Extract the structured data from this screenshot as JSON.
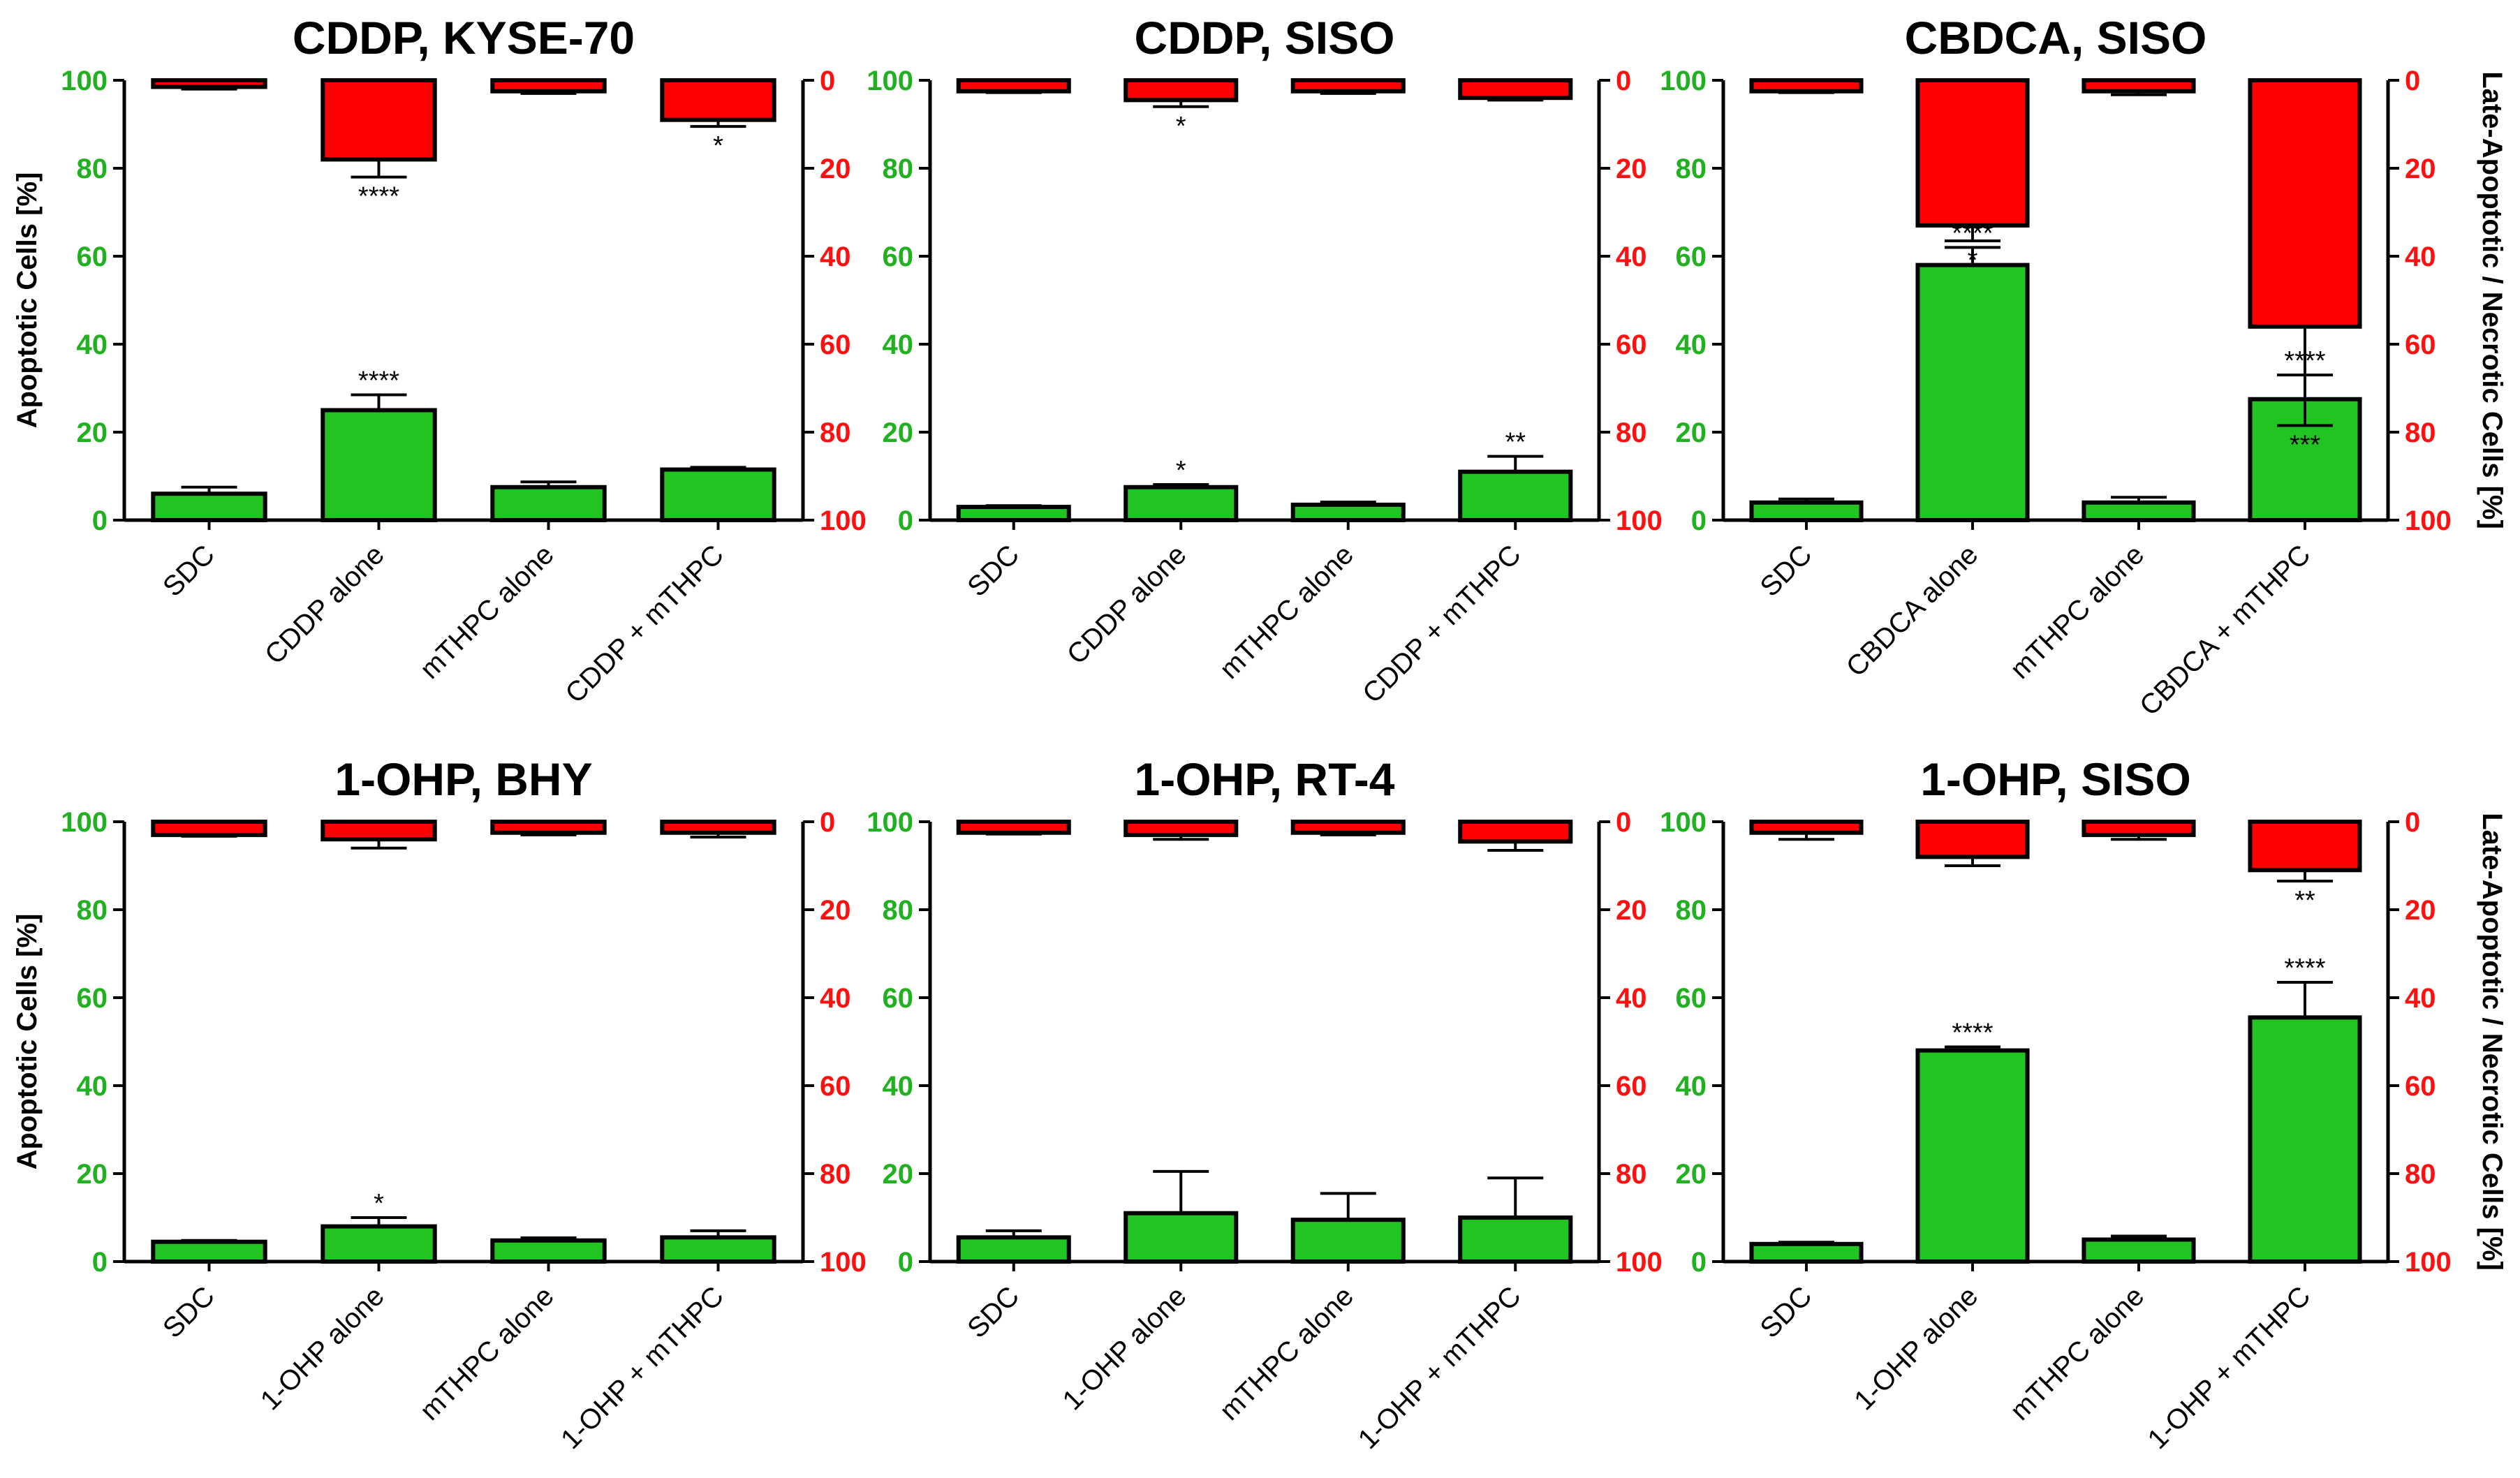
{
  "colors": {
    "green": "#22c422",
    "red": "#ff0000",
    "axis_green": "#20b020",
    "axis_red": "#ff1010"
  },
  "ylabel_left": "Apoptotic Cells [%]",
  "ylabel_right": "Late-Apoptotic / Necrotic Cells [%]",
  "chart_data": [
    {
      "type": "bar",
      "title": "CDDP, KYSE-70",
      "categories": [
        "SDC",
        "CDDP alone",
        "mTHPC alone",
        "CDDP + mTHPC"
      ],
      "left_axis": {
        "label": "Apoptotic Cells [%]",
        "ylim": [
          0,
          100
        ],
        "ticks": [
          "0",
          "20",
          "40",
          "60",
          "80",
          "100"
        ]
      },
      "right_axis": {
        "label": "Late-Apoptotic / Necrotic Cells [%]",
        "ylim": [
          0,
          100
        ],
        "inverted": true,
        "ticks": [
          "0",
          "20",
          "40",
          "60",
          "80",
          "100"
        ]
      },
      "series": [
        {
          "name": "Apoptotic Cells",
          "values": [
            6,
            25,
            7.5,
            11.5
          ],
          "errors": [
            1.5,
            3.5,
            1.2,
            0.5
          ],
          "sig": [
            "",
            "****",
            "",
            ""
          ]
        },
        {
          "name": "Late-Apoptotic / Necrotic Cells",
          "values": [
            1.5,
            18,
            2.5,
            9
          ],
          "errors": [
            0.5,
            4,
            0.5,
            1.5
          ],
          "sig": [
            "",
            "****",
            "",
            "*"
          ]
        }
      ]
    },
    {
      "type": "bar",
      "title": "CDDP, SISO",
      "categories": [
        "SDC",
        "CDDP alone",
        "mTHPC alone",
        "CDDP + mTHPC"
      ],
      "left_axis": {
        "label": "Apoptotic Cells [%]",
        "ylim": [
          0,
          100
        ],
        "ticks": [
          "0",
          "20",
          "40",
          "60",
          "80",
          "100"
        ]
      },
      "right_axis": {
        "label": "Late-Apoptotic / Necrotic Cells [%]",
        "ylim": [
          0,
          100
        ],
        "inverted": true,
        "ticks": [
          "0",
          "20",
          "40",
          "60",
          "80",
          "100"
        ]
      },
      "series": [
        {
          "name": "Apoptotic Cells",
          "values": [
            3,
            7.5,
            3.5,
            11
          ],
          "errors": [
            0.3,
            0.6,
            0.6,
            3.5
          ],
          "sig": [
            "",
            "*",
            "",
            "**"
          ]
        },
        {
          "name": "Late-Apoptotic / Necrotic Cells",
          "values": [
            2.5,
            4.5,
            2.5,
            4
          ],
          "errors": [
            0.3,
            1.5,
            0.5,
            0.5
          ],
          "sig": [
            "",
            "*",
            "",
            ""
          ]
        }
      ]
    },
    {
      "type": "bar",
      "title": "CBDCA, SISO",
      "categories": [
        "SDC",
        "CBDCA alone",
        "mTHPC alone",
        "CBDCA + mTHPC"
      ],
      "left_axis": {
        "label": "Apoptotic Cells [%]",
        "ylim": [
          0,
          100
        ],
        "ticks": [
          "0",
          "20",
          "40",
          "60",
          "80",
          "100"
        ]
      },
      "right_axis": {
        "label": "Late-Apoptotic / Necrotic Cells [%]",
        "ylim": [
          0,
          100
        ],
        "inverted": true,
        "ticks": [
          "0",
          "20",
          "40",
          "60",
          "80",
          "100"
        ]
      },
      "series": [
        {
          "name": "Apoptotic Cells",
          "values": [
            4,
            58,
            4,
            27.5
          ],
          "errors": [
            0.8,
            4,
            1.2,
            5.5
          ],
          "sig": [
            "",
            "****",
            "",
            "****"
          ]
        },
        {
          "name": "Late-Apoptotic / Necrotic Cells",
          "values": [
            2.5,
            33,
            2.5,
            56
          ],
          "errors": [
            0.3,
            3.5,
            0.8,
            22.5
          ],
          "sig": [
            "",
            "*",
            "",
            "***"
          ]
        }
      ]
    },
    {
      "type": "bar",
      "title": "1-OHP, BHY",
      "categories": [
        "SDC",
        "1-OHP alone",
        "mTHPC alone",
        "1-OHP + mTHPC"
      ],
      "left_axis": {
        "label": "Apoptotic Cells [%]",
        "ylim": [
          0,
          100
        ],
        "ticks": [
          "0",
          "20",
          "40",
          "60",
          "80",
          "100"
        ]
      },
      "right_axis": {
        "label": "Late-Apoptotic / Necrotic Cells [%]",
        "ylim": [
          0,
          100
        ],
        "inverted": true,
        "ticks": [
          "0",
          "20",
          "40",
          "60",
          "80",
          "100"
        ]
      },
      "series": [
        {
          "name": "Apoptotic Cells",
          "values": [
            4.5,
            8,
            4.8,
            5.5
          ],
          "errors": [
            0.3,
            2,
            0.6,
            1.5
          ],
          "sig": [
            "",
            "*",
            "",
            ""
          ]
        },
        {
          "name": "Late-Apoptotic / Necrotic Cells",
          "values": [
            3,
            4,
            2.5,
            2.5
          ],
          "errors": [
            0.3,
            2,
            0.5,
            1
          ],
          "sig": [
            "",
            "",
            "",
            ""
          ]
        }
      ]
    },
    {
      "type": "bar",
      "title": "1-OHP, RT-4",
      "categories": [
        "SDC",
        "1-OHP alone",
        "mTHPC alone",
        "1-OHP + mTHPC"
      ],
      "left_axis": {
        "label": "Apoptotic Cells [%]",
        "ylim": [
          0,
          100
        ],
        "ticks": [
          "0",
          "20",
          "40",
          "60",
          "80",
          "100"
        ]
      },
      "right_axis": {
        "label": "Late-Apoptotic / Necrotic Cells [%]",
        "ylim": [
          0,
          100
        ],
        "inverted": true,
        "ticks": [
          "0",
          "20",
          "40",
          "60",
          "80",
          "100"
        ]
      },
      "series": [
        {
          "name": "Apoptotic Cells",
          "values": [
            5.5,
            11,
            9.5,
            10
          ],
          "errors": [
            1.5,
            9.5,
            6,
            9
          ],
          "sig": [
            "",
            "",
            "",
            ""
          ]
        },
        {
          "name": "Late-Apoptotic / Necrotic Cells",
          "values": [
            2.5,
            3,
            2.5,
            4.5
          ],
          "errors": [
            0.3,
            1,
            0.5,
            2
          ],
          "sig": [
            "",
            "",
            "",
            ""
          ]
        }
      ]
    },
    {
      "type": "bar",
      "title": "1-OHP, SISO",
      "categories": [
        "SDC",
        "1-OHP alone",
        "mTHPC alone",
        "1-OHP + mTHPC"
      ],
      "left_axis": {
        "label": "Apoptotic Cells [%]",
        "ylim": [
          0,
          100
        ],
        "ticks": [
          "0",
          "20",
          "40",
          "60",
          "80",
          "100"
        ]
      },
      "right_axis": {
        "label": "Late-Apoptotic / Necrotic Cells [%]",
        "ylim": [
          0,
          100
        ],
        "inverted": true,
        "ticks": [
          "0",
          "20",
          "40",
          "60",
          "80",
          "100"
        ]
      },
      "series": [
        {
          "name": "Apoptotic Cells",
          "values": [
            4,
            48,
            5,
            55.5
          ],
          "errors": [
            0.4,
            0.8,
            0.8,
            8
          ],
          "sig": [
            "",
            "****",
            "",
            "****"
          ]
        },
        {
          "name": "Late-Apoptotic / Necrotic Cells",
          "values": [
            2.5,
            8,
            3,
            11
          ],
          "errors": [
            1.5,
            2,
            1,
            2.5
          ],
          "sig": [
            "",
            "",
            "",
            "**"
          ]
        }
      ]
    }
  ]
}
